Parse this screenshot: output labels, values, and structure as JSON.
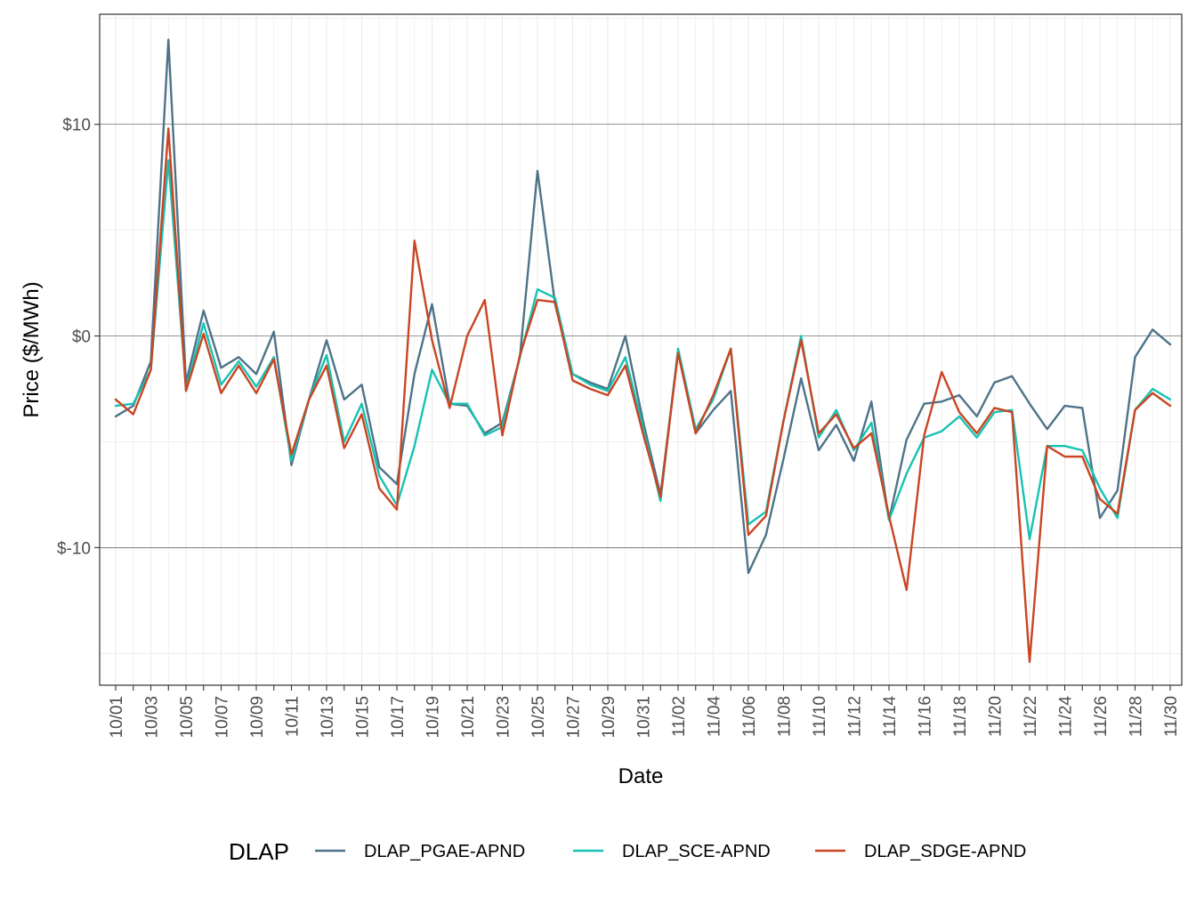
{
  "chart_data": {
    "type": "line",
    "xlabel": "Date",
    "ylabel": "Price ($/MWh)",
    "ylim": [
      -16.5,
      15.2
    ],
    "y_ticks": [
      {
        "value": 10,
        "label": "$10"
      },
      {
        "value": 0,
        "label": "$0"
      },
      {
        "value": -10,
        "label": "$-10"
      }
    ],
    "x_tick_labels": [
      "10/01",
      "10/03",
      "10/05",
      "10/07",
      "10/09",
      "10/11",
      "10/13",
      "10/15",
      "10/17",
      "10/19",
      "10/21",
      "10/23",
      "10/25",
      "10/27",
      "10/29",
      "10/31",
      "11/02",
      "11/04",
      "11/06",
      "11/08",
      "11/10",
      "11/12",
      "11/14",
      "11/16",
      "11/18",
      "11/20",
      "11/22",
      "11/24",
      "11/26",
      "11/28",
      "11/30"
    ],
    "x_dates": [
      "10/01",
      "10/02",
      "10/03",
      "10/04",
      "10/05",
      "10/06",
      "10/07",
      "10/08",
      "10/09",
      "10/10",
      "10/11",
      "10/12",
      "10/13",
      "10/14",
      "10/15",
      "10/16",
      "10/17",
      "10/18",
      "10/19",
      "10/20",
      "10/21",
      "10/22",
      "10/23",
      "10/24",
      "10/25",
      "10/26",
      "10/27",
      "10/28",
      "10/29",
      "10/30",
      "10/31",
      "11/01",
      "11/02",
      "11/03",
      "11/04",
      "11/05",
      "11/06",
      "11/07",
      "11/08",
      "11/09",
      "11/10",
      "11/11",
      "11/12",
      "11/13",
      "11/14",
      "11/15",
      "11/16",
      "11/17",
      "11/18",
      "11/19",
      "11/20",
      "11/21",
      "11/22",
      "11/23",
      "11/24",
      "11/25",
      "11/26",
      "11/27",
      "11/28",
      "11/29",
      "11/30"
    ],
    "grid": true,
    "legend": {
      "title": "DLAP",
      "position": "bottom"
    },
    "series": [
      {
        "name": "DLAP_PGAE-APND",
        "color": "#4e7388",
        "values": [
          -3.8,
          -3.3,
          -1.2,
          14.0,
          -2.2,
          1.2,
          -1.5,
          -1.0,
          -1.8,
          0.2,
          -6.1,
          -3.0,
          -0.2,
          -3.0,
          -2.3,
          -6.2,
          -7.0,
          -1.8,
          1.5,
          -3.2,
          -3.3,
          -4.6,
          -4.1,
          -1.0,
          7.8,
          1.5,
          -1.8,
          -2.2,
          -2.5,
          0.0,
          -4.0,
          -7.5,
          -0.7,
          -4.6,
          -3.5,
          -2.6,
          -11.2,
          -9.4,
          -5.8,
          -2.0,
          -5.4,
          -4.2,
          -5.9,
          -3.1,
          -8.7,
          -4.9,
          -3.2,
          -3.1,
          -2.8,
          -3.8,
          -2.2,
          -1.9,
          -3.2,
          -4.4,
          -3.3,
          -3.4,
          -8.6,
          -7.3,
          -1.0,
          0.3,
          -0.4
        ]
      },
      {
        "name": "DLAP_SCE-APND",
        "color": "#17c2b2",
        "values": [
          -3.3,
          -3.2,
          -1.6,
          8.3,
          -2.5,
          0.6,
          -2.3,
          -1.2,
          -2.4,
          -1.0,
          -5.9,
          -3.0,
          -0.9,
          -5.0,
          -3.2,
          -6.6,
          -8.0,
          -5.2,
          -1.6,
          -3.2,
          -3.2,
          -4.7,
          -4.3,
          -1.0,
          2.2,
          1.8,
          -1.8,
          -2.3,
          -2.6,
          -1.0,
          -4.3,
          -7.8,
          -0.6,
          -4.4,
          -3.0,
          -0.6,
          -8.9,
          -8.3,
          -4.0,
          0.0,
          -4.8,
          -3.5,
          -5.4,
          -4.1,
          -8.7,
          -6.5,
          -4.8,
          -4.5,
          -3.8,
          -4.8,
          -3.6,
          -3.5,
          -9.6,
          -5.2,
          -5.2,
          -5.4,
          -7.2,
          -8.6,
          -3.5,
          -2.5,
          -3.0
        ]
      },
      {
        "name": "DLAP_SDGE-APND",
        "color": "#ca4522",
        "values": [
          -3.0,
          -3.7,
          -1.6,
          9.8,
          -2.6,
          0.1,
          -2.7,
          -1.4,
          -2.7,
          -1.1,
          -5.6,
          -3.0,
          -1.4,
          -5.3,
          -3.7,
          -7.2,
          -8.2,
          4.5,
          -0.2,
          -3.4,
          0.0,
          1.7,
          -4.7,
          -0.9,
          1.7,
          1.6,
          -2.1,
          -2.5,
          -2.8,
          -1.4,
          -4.6,
          -7.6,
          -0.8,
          -4.6,
          -2.8,
          -0.6,
          -9.4,
          -8.5,
          -4.0,
          -0.2,
          -4.6,
          -3.7,
          -5.3,
          -4.6,
          -8.5,
          -12.0,
          -4.7,
          -1.7,
          -3.6,
          -4.6,
          -3.4,
          -3.6,
          -15.4,
          -5.2,
          -5.7,
          -5.7,
          -7.7,
          -8.4,
          -3.5,
          -2.7,
          -3.3
        ]
      }
    ]
  }
}
